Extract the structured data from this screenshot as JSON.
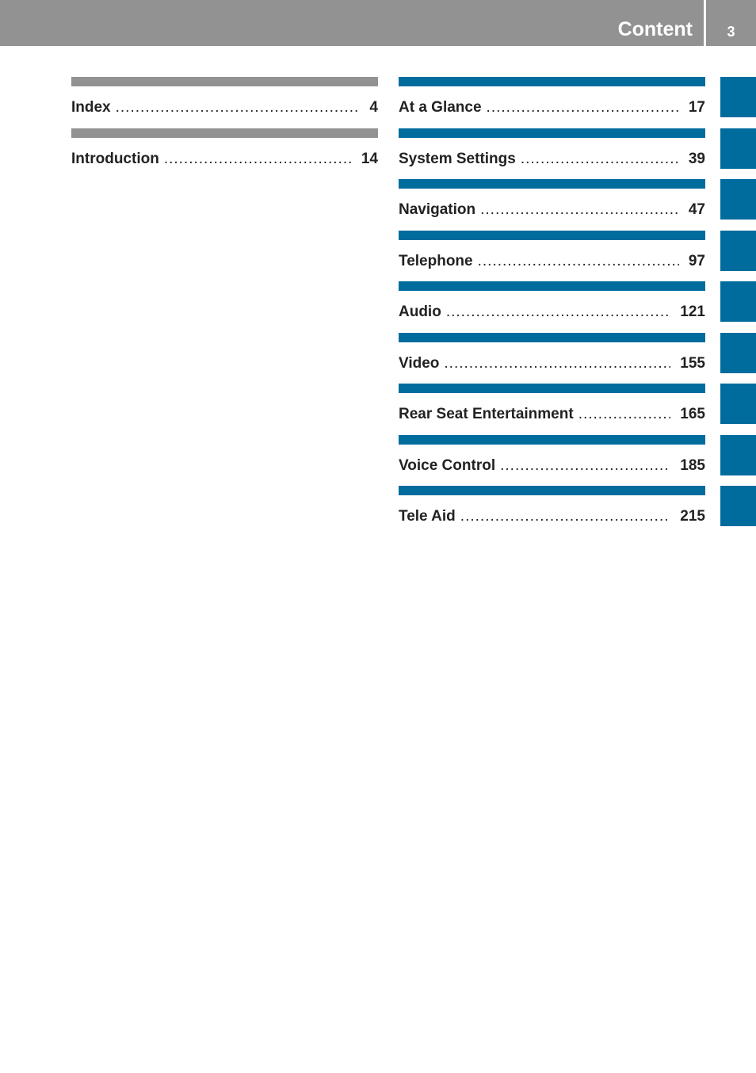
{
  "header": {
    "title": "Content",
    "page_number": "3"
  },
  "left_column": [
    {
      "label": "Index",
      "page": "4"
    },
    {
      "label": "Introduction",
      "page": "14"
    }
  ],
  "right_column": [
    {
      "label": "At a Glance",
      "page": "17"
    },
    {
      "label": "System Settings",
      "page": "39"
    },
    {
      "label": "Navigation",
      "page": "47"
    },
    {
      "label": "Telephone",
      "page": "97"
    },
    {
      "label": "Audio",
      "page": "121"
    },
    {
      "label": "Video",
      "page": "155"
    },
    {
      "label": "Rear Seat Entertainment",
      "page": "165"
    },
    {
      "label": "Voice Control",
      "page": "185"
    },
    {
      "label": "Tele Aid",
      "page": "215"
    }
  ],
  "colors": {
    "header_gray": "#929292",
    "section_blue": "#006c9e",
    "section_gray": "#929292"
  }
}
